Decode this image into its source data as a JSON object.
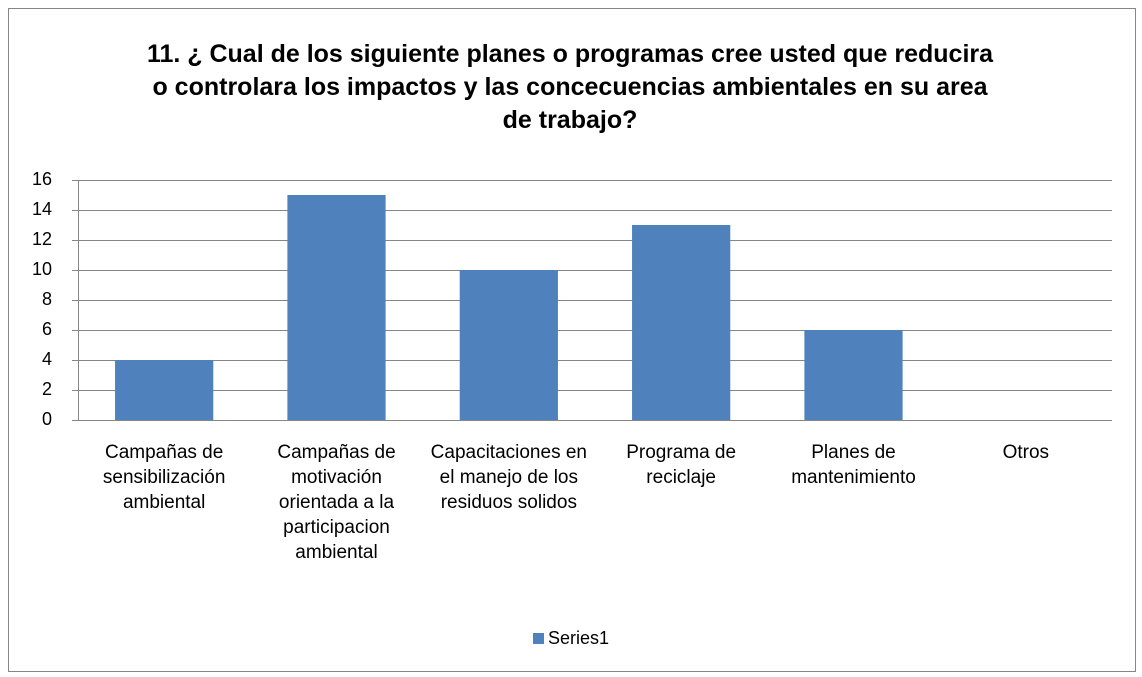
{
  "chart_data": {
    "type": "bar",
    "title": "11. ¿ Cual de los siguiente planes o  programas cree usted que reducira o controlara  los   impactos y las concecuencias ambientales en su area de trabajo?",
    "categories": [
      "Campañas de sensibilización ambiental",
      "Campañas de motivación orientada a la participacion ambiental",
      "Capacitaciones en el manejo de los residuos solidos",
      "Programa de reciclaje",
      "Planes de mantenimiento",
      "Otros"
    ],
    "series": [
      {
        "name": "Series1",
        "color": "#4f81bd",
        "values": [
          4,
          15,
          10,
          13,
          6,
          0
        ]
      }
    ],
    "ylim": [
      0,
      16
    ],
    "yticks": [
      0,
      2,
      4,
      6,
      8,
      10,
      12,
      14,
      16
    ],
    "grid": true,
    "legend": "bottom"
  }
}
